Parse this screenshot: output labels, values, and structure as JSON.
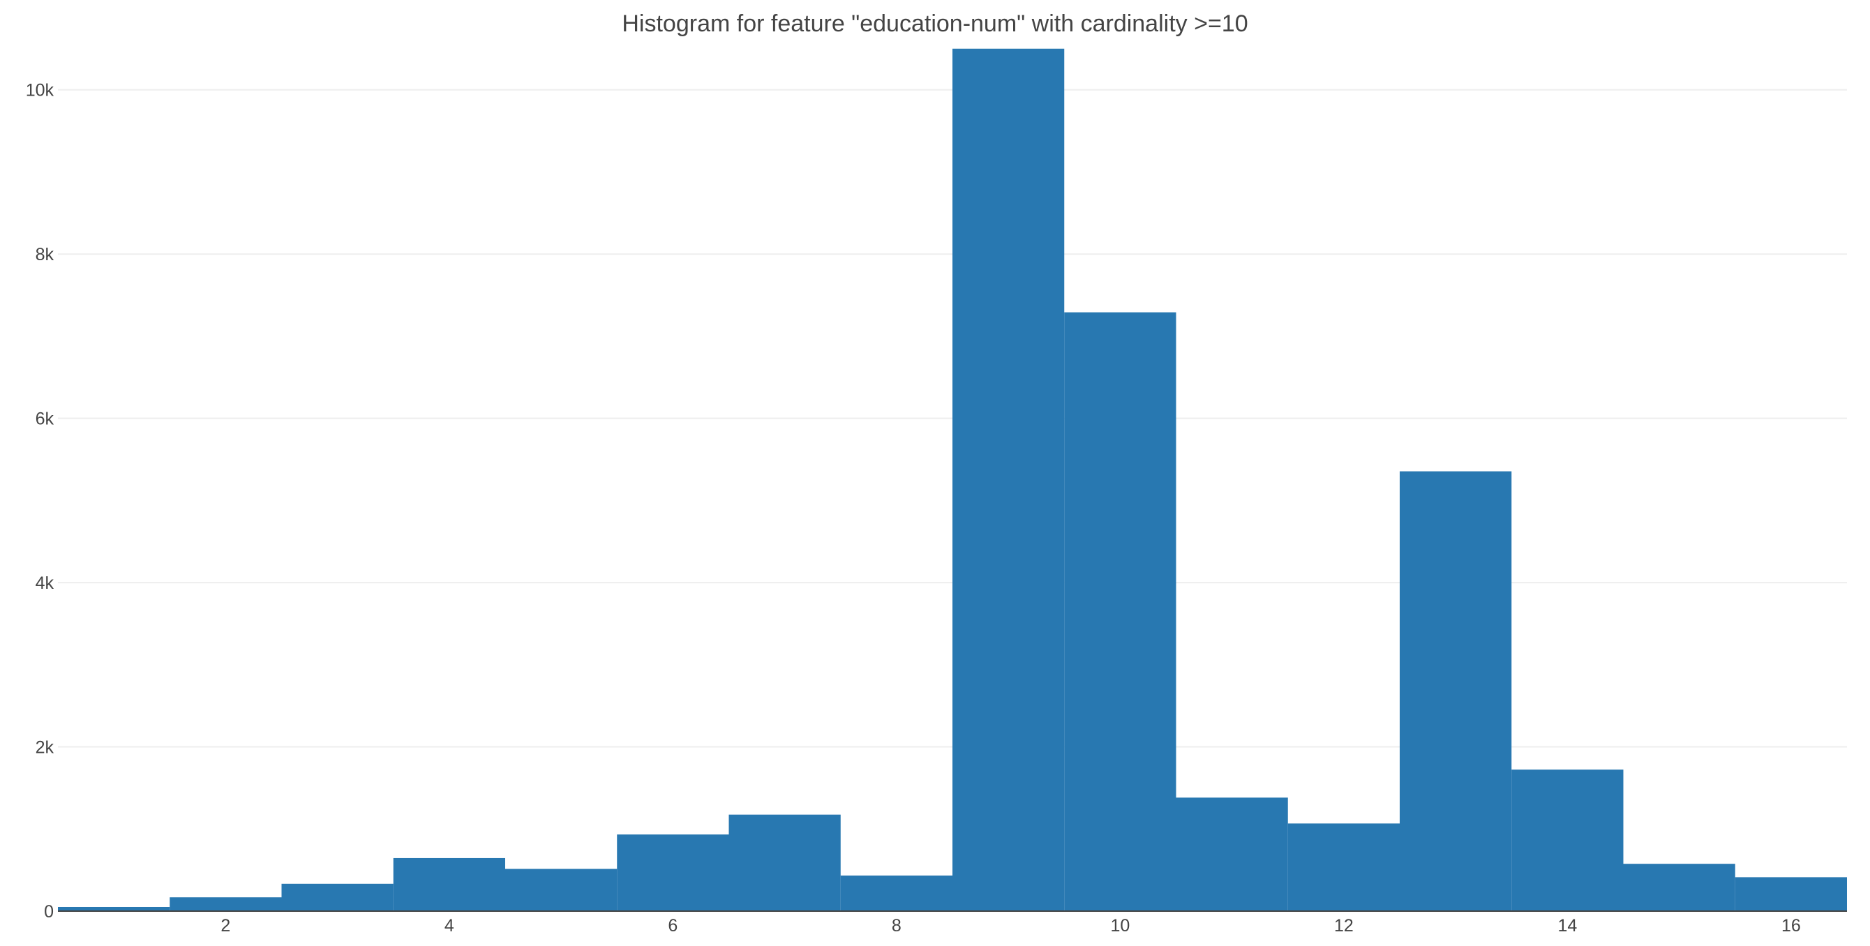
{
  "chart_data": {
    "type": "bar",
    "title": "Histogram for feature \"education-num\" with cardinality >=10",
    "xlabel": "",
    "ylabel": "",
    "categories": [
      "1",
      "2",
      "3",
      "4",
      "5",
      "6",
      "7",
      "8",
      "9",
      "10",
      "11",
      "12",
      "13",
      "14",
      "15",
      "16"
    ],
    "x": [
      1,
      2,
      3,
      4,
      5,
      6,
      7,
      8,
      9,
      10,
      11,
      12,
      13,
      14,
      15,
      16
    ],
    "values": [
      51,
      168,
      333,
      646,
      514,
      933,
      1175,
      433,
      10501,
      7291,
      1382,
      1067,
      5355,
      1723,
      576,
      413
    ],
    "xlim": [
      0.5,
      16.5
    ],
    "ylim": [
      0,
      10550
    ],
    "x_ticks": [
      2,
      4,
      6,
      8,
      10,
      12,
      14,
      16
    ],
    "x_tick_labels": [
      "2",
      "4",
      "6",
      "8",
      "10",
      "12",
      "14",
      "16"
    ],
    "y_ticks": [
      0,
      2000,
      4000,
      6000,
      8000,
      10000
    ],
    "y_tick_labels": [
      "0",
      "2k",
      "4k",
      "6k",
      "8k",
      "10k"
    ],
    "grid": true,
    "legend": "none",
    "bar_color": "#2878b1"
  }
}
